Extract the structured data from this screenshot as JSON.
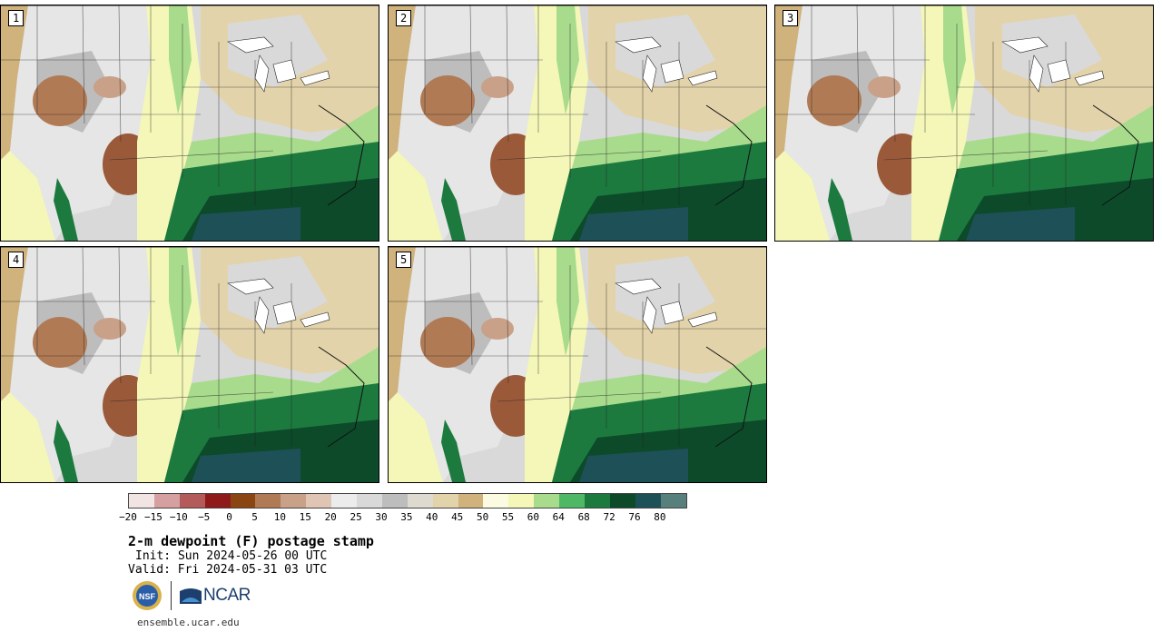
{
  "panels": [
    {
      "label": "1"
    },
    {
      "label": "2"
    },
    {
      "label": "3"
    },
    {
      "label": "4"
    },
    {
      "label": "5"
    }
  ],
  "colorbar": {
    "colors": [
      "#f3e4e4",
      "#d7a0a0",
      "#b35a5a",
      "#8e1a1a",
      "#8b4513",
      "#b07a55",
      "#c9a088",
      "#e0c5b5",
      "#ececec",
      "#d9d9d9",
      "#bdbdbd",
      "#dedad0",
      "#e3d3aa",
      "#cfb27c",
      "#fbfbe1",
      "#f4f7b8",
      "#a8dc8c",
      "#4fb865",
      "#1d7a3f",
      "#0c4a2a",
      "#1e5058",
      "#57807c"
    ],
    "ticks": [
      "−20",
      "−15",
      "−10",
      "−5",
      "0",
      "5",
      "10",
      "15",
      "20",
      "25",
      "30",
      "35",
      "40",
      "45",
      "50",
      "55",
      "60",
      "64",
      "68",
      "72",
      "76",
      "80"
    ]
  },
  "title": "2-m dewpoint (F) postage stamp",
  "init": "Init: Sun 2024-05-26 00 UTC",
  "valid": "Valid: Fri 2024-05-31 03 UTC",
  "logos": {
    "nsf": "NSF",
    "ncar": "NCAR"
  },
  "site": "ensemble.ucar.edu"
}
